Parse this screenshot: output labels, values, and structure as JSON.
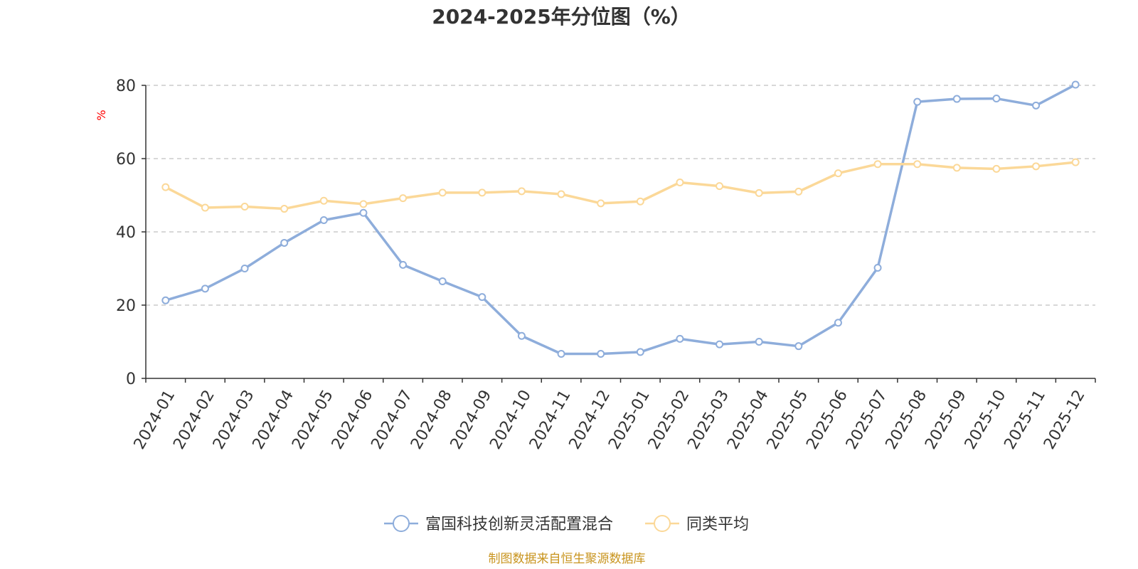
{
  "chart_data": {
    "type": "line",
    "title": "2024-2025年分位图（%）",
    "ylabel": "%",
    "xlabel": "",
    "ylim": [
      0,
      80
    ],
    "y_ticks": [
      "0",
      "20",
      "40",
      "60",
      "80"
    ],
    "grid": true,
    "legend_position": "bottom",
    "categories": [
      "2024-01",
      "2024-02",
      "2024-03",
      "2024-04",
      "2024-05",
      "2024-06",
      "2024-07",
      "2024-08",
      "2024-09",
      "2024-10",
      "2024-11",
      "2024-12",
      "2025-01",
      "2025-02",
      "2025-03",
      "2025-04",
      "2025-05",
      "2025-06",
      "2025-07",
      "2025-08",
      "2025-09",
      "2025-10",
      "2025-11",
      "2025-12"
    ],
    "series": [
      {
        "name": "富国科技创新灵活配置混合",
        "color": "#8eaddb",
        "values": [
          21.3,
          24.5,
          30.0,
          37.0,
          43.2,
          45.2,
          31.0,
          26.5,
          22.2,
          11.6,
          6.7,
          6.7,
          7.2,
          10.8,
          9.3,
          10.0,
          8.8,
          15.2,
          30.2,
          75.5,
          76.3,
          76.4,
          74.5,
          80.2
        ]
      },
      {
        "name": "同类平均",
        "color": "#fbd898",
        "values": [
          52.2,
          46.6,
          46.9,
          46.3,
          48.5,
          47.6,
          49.2,
          50.7,
          50.7,
          51.1,
          50.3,
          47.8,
          48.3,
          53.5,
          52.5,
          50.6,
          51.0,
          56.0,
          58.5,
          58.5,
          57.5,
          57.2,
          57.9,
          59.0
        ]
      }
    ]
  },
  "source": "制图数据来自恒生聚源数据库"
}
